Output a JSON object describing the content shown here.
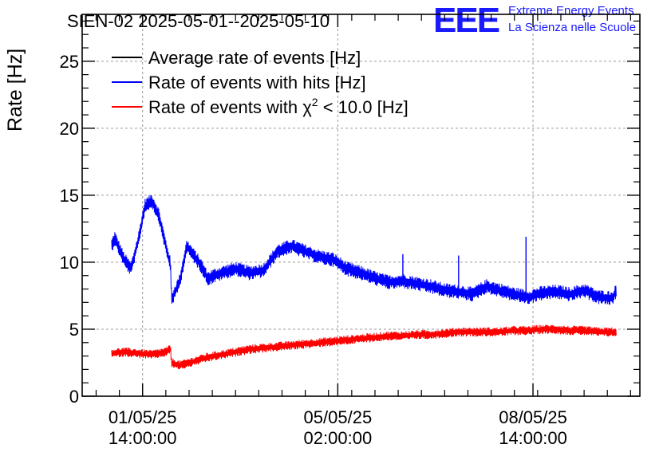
{
  "chart_data": {
    "type": "line",
    "title": "SIEN-02 2025-05-01--2025-05-10",
    "xlabel": "",
    "ylabel": "Rate [Hz]",
    "xlim": [
      "2025-04-30 12:00",
      "2025-05-10 12:00"
    ],
    "ylim": [
      0,
      28.5
    ],
    "y_ticks": [
      0,
      5,
      10,
      15,
      20,
      25
    ],
    "x_ticks": [
      {
        "date": "01/05/25",
        "time": "14:00:00",
        "value": "2025-05-01 14:00"
      },
      {
        "date": "05/05/25",
        "time": "02:00:00",
        "value": "2025-05-05 02:00"
      },
      {
        "date": "08/05/25",
        "time": "14:00:00",
        "value": "2025-05-08 14:00"
      }
    ],
    "grid": true,
    "legend_position": "top-left",
    "series": [
      {
        "name": "Average rate of events [Hz]",
        "color": "#000000",
        "x": [],
        "values": []
      },
      {
        "name": "Rate of events with hits [Hz]",
        "color": "#0000ff",
        "x": [
          "2025-05-01 00:40",
          "2025-05-01 02:00",
          "2025-05-01 06:00",
          "2025-05-01 09:00",
          "2025-05-01 12:00",
          "2025-05-01 15:00",
          "2025-05-01 18:00",
          "2025-05-01 21:00",
          "2025-05-02 00:00",
          "2025-05-02 02:00",
          "2025-05-02 02:30",
          "2025-05-02 06:00",
          "2025-05-02 09:00",
          "2025-05-02 12:00",
          "2025-05-02 15:00",
          "2025-05-02 18:00",
          "2025-05-03 00:00",
          "2025-05-03 06:00",
          "2025-05-03 12:00",
          "2025-05-03 18:00",
          "2025-05-04 00:00",
          "2025-05-04 06:00",
          "2025-05-04 12:00",
          "2025-05-04 18:00",
          "2025-05-05 00:00",
          "2025-05-05 06:00",
          "2025-05-05 12:00",
          "2025-05-05 18:00",
          "2025-05-06 00:00",
          "2025-05-06 06:00",
          "2025-05-06 12:00",
          "2025-05-06 18:00",
          "2025-05-07 00:00",
          "2025-05-07 06:00",
          "2025-05-07 12:00",
          "2025-05-07 18:00",
          "2025-05-08 00:00",
          "2025-05-08 06:00",
          "2025-05-08 12:00",
          "2025-05-08 18:00",
          "2025-05-09 00:00",
          "2025-05-09 06:00",
          "2025-05-09 12:00",
          "2025-05-09 18:00",
          "2025-05-10 00:00",
          "2025-05-10 02:00"
        ],
        "values": [
          11.2,
          11.8,
          10.2,
          9.5,
          11.5,
          14.2,
          14.6,
          13.5,
          11.2,
          9.8,
          7.2,
          8.6,
          11.2,
          10.5,
          9.8,
          8.8,
          9.2,
          9.5,
          9.2,
          9.4,
          10.8,
          11.2,
          10.8,
          10.4,
          10.2,
          9.5,
          9.2,
          8.8,
          8.5,
          8.6,
          8.4,
          8.2,
          7.9,
          7.8,
          7.6,
          8.2,
          7.9,
          7.6,
          7.4,
          7.7,
          7.8,
          7.6,
          7.9,
          7.4,
          7.3,
          7.9
        ],
        "spikes": [
          {
            "x": "2025-05-06 06:00",
            "value": 10.6
          },
          {
            "x": "2025-05-07 06:00",
            "value": 10.5
          },
          {
            "x": "2025-05-08 11:00",
            "value": 11.9
          }
        ]
      },
      {
        "name": "Rate of events with χ² < 10.0 [Hz]",
        "color": "#ff0000",
        "x": [
          "2025-05-01 00:40",
          "2025-05-01 06:00",
          "2025-05-01 12:00",
          "2025-05-01 18:00",
          "2025-05-02 00:00",
          "2025-05-02 02:00",
          "2025-05-02 02:30",
          "2025-05-02 06:00",
          "2025-05-02 12:00",
          "2025-05-02 18:00",
          "2025-05-03 00:00",
          "2025-05-03 06:00",
          "2025-05-03 12:00",
          "2025-05-03 18:00",
          "2025-05-04 00:00",
          "2025-05-04 06:00",
          "2025-05-04 12:00",
          "2025-05-04 18:00",
          "2025-05-05 00:00",
          "2025-05-05 06:00",
          "2025-05-05 12:00",
          "2025-05-05 18:00",
          "2025-05-06 00:00",
          "2025-05-06 06:00",
          "2025-05-06 12:00",
          "2025-05-06 18:00",
          "2025-05-07 00:00",
          "2025-05-07 06:00",
          "2025-05-07 12:00",
          "2025-05-07 18:00",
          "2025-05-08 00:00",
          "2025-05-08 06:00",
          "2025-05-08 12:00",
          "2025-05-08 18:00",
          "2025-05-09 00:00",
          "2025-05-09 06:00",
          "2025-05-09 12:00",
          "2025-05-09 18:00",
          "2025-05-10 00:00",
          "2025-05-10 02:00"
        ],
        "values": [
          3.2,
          3.3,
          3.2,
          3.1,
          3.3,
          3.5,
          2.5,
          2.3,
          2.6,
          2.9,
          3.1,
          3.3,
          3.5,
          3.6,
          3.7,
          3.8,
          3.9,
          4.0,
          4.1,
          4.2,
          4.3,
          4.4,
          4.5,
          4.5,
          4.6,
          4.6,
          4.7,
          4.8,
          4.8,
          4.8,
          4.8,
          4.9,
          4.9,
          5.0,
          5.0,
          4.9,
          4.9,
          4.8,
          4.8,
          4.7
        ]
      }
    ]
  },
  "logo": {
    "mark": "EEE",
    "line1": "Extreme Energy Events",
    "line2": "La Scienza nelle Scuole"
  },
  "legend_chi": {
    "prefix": "Rate of events with ",
    "symbol": "χ",
    "superscript": "2",
    "suffix": " < 10.0 [Hz]"
  }
}
